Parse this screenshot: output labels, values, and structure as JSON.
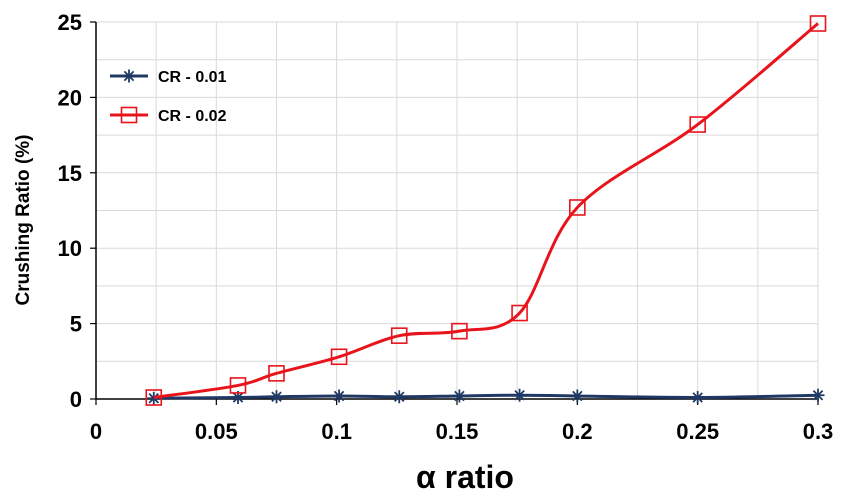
{
  "chart_data": {
    "type": "line",
    "title": "",
    "xlabel": "α ratio",
    "ylabel": "Crushing Ratio (%)",
    "xlim": [
      0,
      0.3
    ],
    "ylim": [
      0,
      25
    ],
    "x_ticks": [
      "0",
      "0.05",
      "0.1",
      "0.15",
      "0.2",
      "0.25",
      "0.3"
    ],
    "y_ticks": [
      "0",
      "5",
      "10",
      "15",
      "20",
      "25"
    ],
    "grid": true,
    "legend_position": "top-left",
    "series": [
      {
        "name": "CR - 0.01",
        "color": "#1f3864",
        "marker": "asterisk",
        "x": [
          0.024,
          0.059,
          0.075,
          0.101,
          0.126,
          0.151,
          0.176,
          0.2,
          0.25,
          0.3
        ],
        "y": [
          0.05,
          0.1,
          0.15,
          0.2,
          0.15,
          0.2,
          0.25,
          0.2,
          0.1,
          0.25
        ]
      },
      {
        "name": "CR - 0.02",
        "color": "#e8141b",
        "marker": "square",
        "x": [
          0.024,
          0.059,
          0.075,
          0.101,
          0.126,
          0.151,
          0.176,
          0.2,
          0.25,
          0.3
        ],
        "y": [
          0.1,
          0.9,
          1.7,
          2.8,
          4.2,
          4.5,
          5.7,
          12.7,
          18.2,
          24.9
        ]
      }
    ]
  }
}
